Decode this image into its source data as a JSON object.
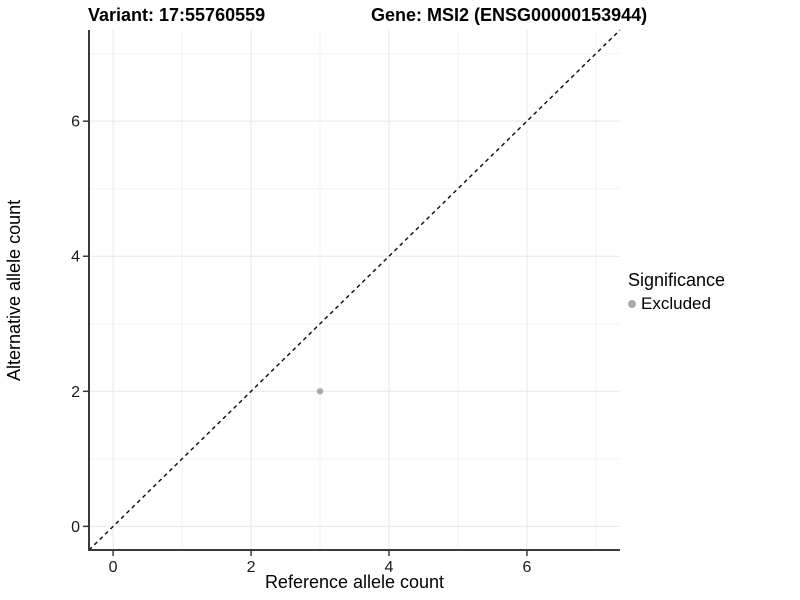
{
  "titles": {
    "variant": "Variant: 17:55760559",
    "gene": "Gene: MSI2 (ENSG00000153944)"
  },
  "chart_data": {
    "type": "scatter",
    "title_left": "Variant: 17:55760559",
    "title_right": "Gene: MSI2 (ENSG00000153944)",
    "xlabel": "Reference allele count",
    "ylabel": "Alternative allele count",
    "xlim": [
      -0.35,
      7.35
    ],
    "ylim": [
      -0.35,
      7.35
    ],
    "x_ticks": [
      0,
      2,
      4,
      6
    ],
    "y_ticks": [
      0,
      2,
      4,
      6
    ],
    "minor_grid_x": [
      1,
      3,
      5,
      7
    ],
    "minor_grid_y": [
      1,
      3,
      5,
      7
    ],
    "grid": true,
    "legend": {
      "title": "Significance",
      "position": "right",
      "entries": [
        {
          "label": "Excluded",
          "color": "#aaaaaa"
        }
      ]
    },
    "series": [
      {
        "name": "Excluded",
        "color": "#aaaaaa",
        "points": [
          {
            "x": 3,
            "y": 2
          }
        ]
      }
    ],
    "reference_line": {
      "type": "identity",
      "style": "dashed",
      "from": [
        -0.35,
        -0.35
      ],
      "to": [
        7.35,
        7.35
      ],
      "color": "#000000"
    }
  },
  "colors": {
    "background": "#ffffff",
    "axis_line": "#3a3a3a",
    "tick_label": "#1a1a1a",
    "grid_major": "#e7e7e7",
    "grid_minor": "#f3f3f3",
    "point": "#aaaaaa",
    "dashed_line": "#0a0a0a"
  }
}
